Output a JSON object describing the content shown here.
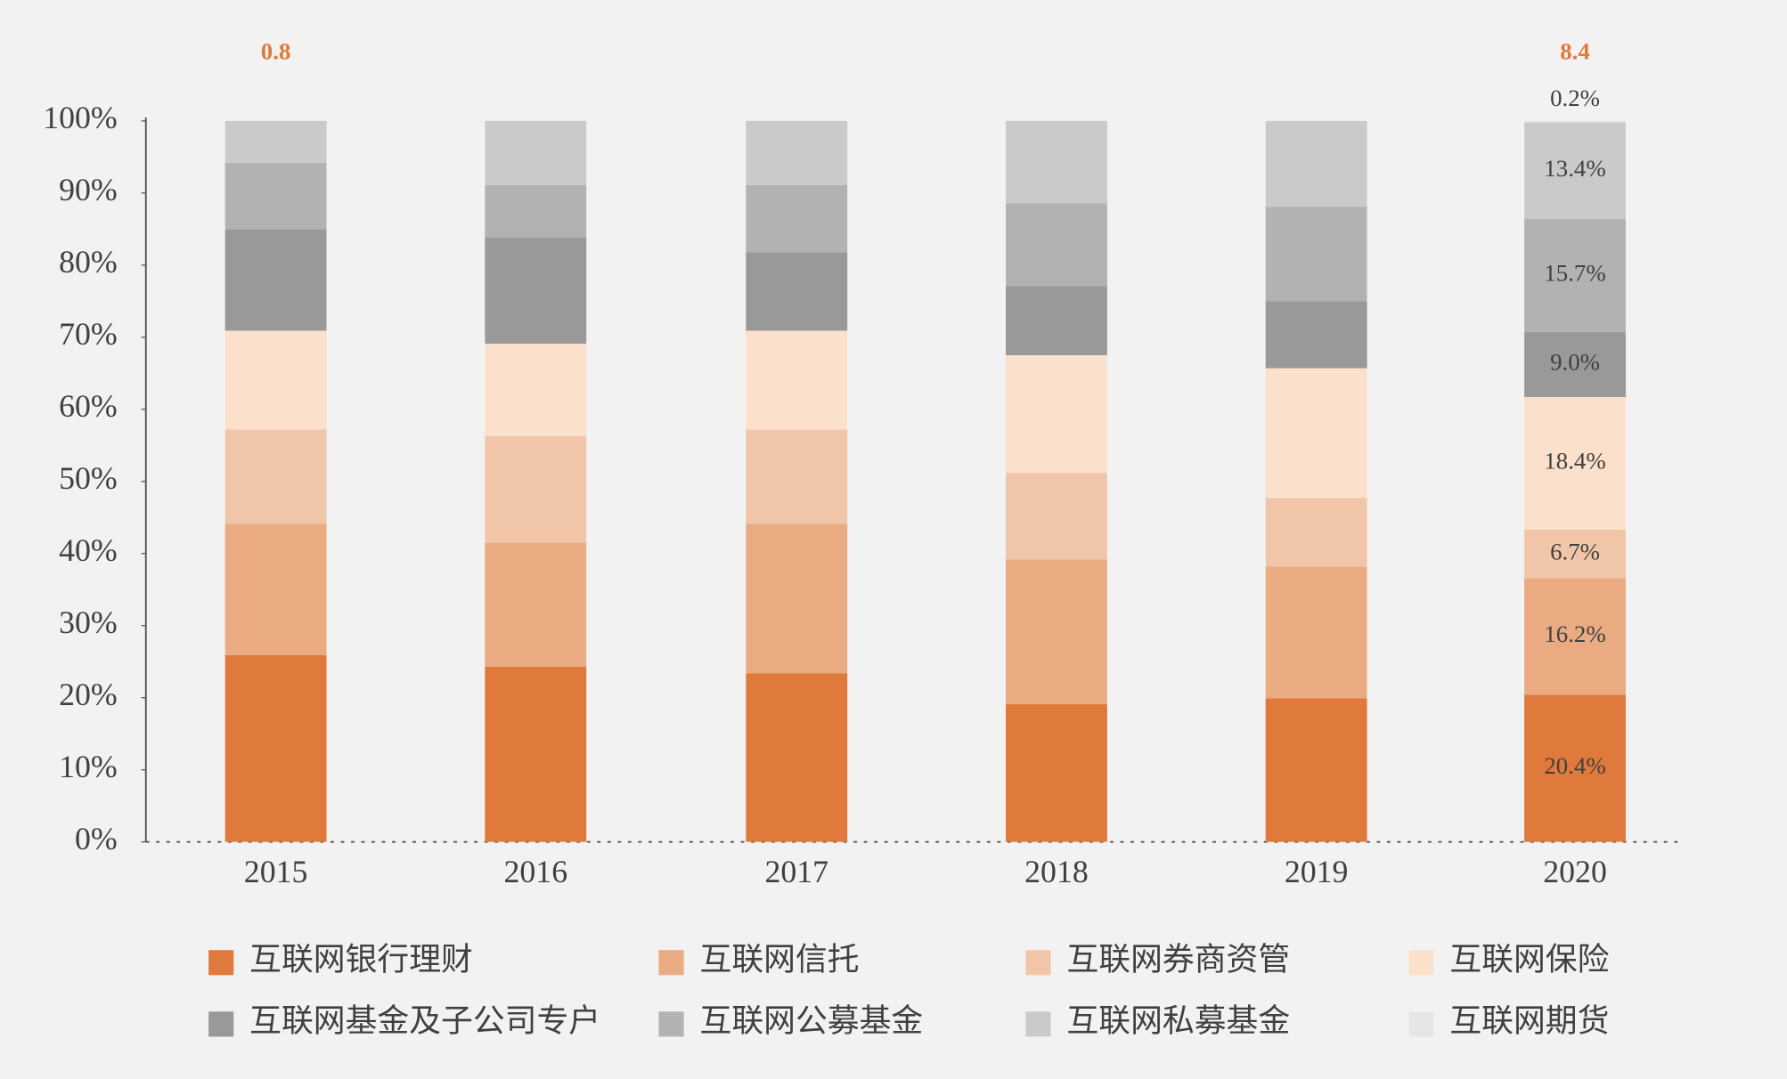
{
  "chart_data": {
    "type": "stacked-bar",
    "categories": [
      "2015",
      "2016",
      "2017",
      "2018",
      "2019",
      "2020"
    ],
    "series": [
      {
        "name": "互联网银行理财",
        "color": "#E07A3C",
        "values": [
          25.9,
          24.3,
          23.4,
          19.1,
          19.9,
          20.4
        ],
        "value_labels": [
          null,
          null,
          null,
          null,
          null,
          "20.4%"
        ]
      },
      {
        "name": "互联网信托",
        "color": "#EAAB83",
        "values": [
          18.2,
          17.2,
          20.7,
          20.1,
          18.3,
          16.2
        ],
        "value_labels": [
          null,
          null,
          null,
          null,
          null,
          "16.2%"
        ]
      },
      {
        "name": "互联网券商资管",
        "color": "#F1C6A8",
        "values": [
          13.1,
          14.8,
          13.1,
          12.0,
          9.5,
          6.7
        ],
        "value_labels": [
          null,
          null,
          null,
          null,
          null,
          "6.7%"
        ]
      },
      {
        "name": "互联网保险",
        "color": "#FBE1CB",
        "values": [
          13.7,
          12.8,
          13.7,
          16.3,
          18.0,
          18.4
        ],
        "value_labels": [
          null,
          null,
          null,
          null,
          null,
          "18.4%"
        ]
      },
      {
        "name": "互联网基金及子公司专户",
        "color": "#999999",
        "values": [
          14.1,
          14.7,
          10.9,
          9.6,
          9.3,
          9.0
        ],
        "value_labels": [
          null,
          null,
          null,
          null,
          null,
          "9.0%"
        ]
      },
      {
        "name": "互联网公募基金",
        "color": "#B2B2B2",
        "values": [
          9.2,
          7.3,
          9.3,
          11.5,
          13.1,
          15.7
        ],
        "value_labels": [
          null,
          null,
          null,
          null,
          null,
          "15.7%"
        ]
      },
      {
        "name": "互联网私募基金",
        "color": "#CACACA",
        "values": [
          5.8,
          8.9,
          8.9,
          11.4,
          11.9,
          13.4
        ],
        "value_labels": [
          null,
          null,
          null,
          null,
          null,
          "13.4%"
        ]
      },
      {
        "name": "互联网期货",
        "color": "#E6E6E6",
        "values": [
          0,
          0,
          0,
          0,
          0,
          0.2
        ],
        "value_labels": [
          null,
          null,
          null,
          null,
          null,
          "0.2%"
        ]
      }
    ],
    "annotations": [
      {
        "text": "0.8",
        "category": "2015"
      },
      {
        "text": "8.4",
        "category": "2020"
      }
    ],
    "ylim": [
      0,
      100
    ],
    "yticks": [
      {
        "value": 0,
        "label": "0%"
      },
      {
        "value": 10,
        "label": "10%"
      },
      {
        "value": 20,
        "label": "20%"
      },
      {
        "value": 30,
        "label": "30%"
      },
      {
        "value": 40,
        "label": "40%"
      },
      {
        "value": 50,
        "label": "50%"
      },
      {
        "value": 60,
        "label": "60%"
      },
      {
        "value": 70,
        "label": "70%"
      },
      {
        "value": 80,
        "label": "80%"
      },
      {
        "value": 90,
        "label": "90%"
      },
      {
        "value": 100,
        "label": "100%"
      }
    ]
  }
}
